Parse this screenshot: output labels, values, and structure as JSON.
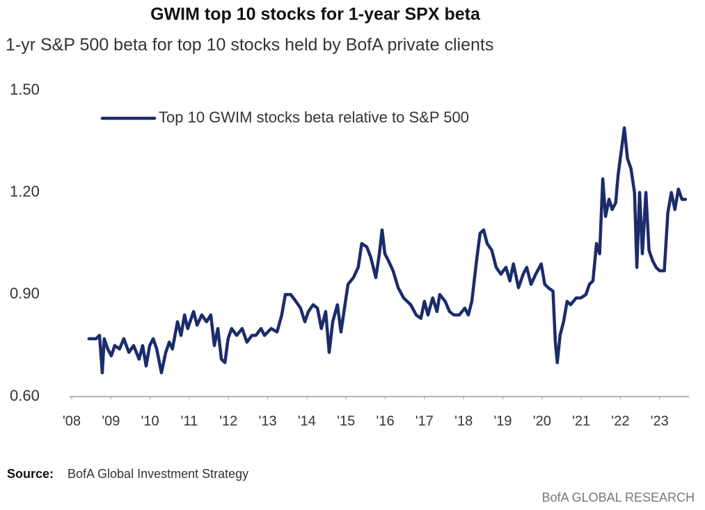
{
  "chart_data": {
    "type": "line",
    "title": "GWIM top 10 stocks for 1-year SPX beta",
    "subtitle": "1-yr S&P 500 beta for top 10 stocks held by BofA private clients",
    "source_label": "Source:",
    "source": "BofA Global Investment Strategy",
    "footer": "BofA GLOBAL RESEARCH",
    "legend": "upper left",
    "xlim": [
      2008,
      2023.75
    ],
    "xticks": [
      {
        "value": 2008,
        "label": "'08"
      },
      {
        "value": 2009,
        "label": "'09"
      },
      {
        "value": 2010,
        "label": "'10"
      },
      {
        "value": 2011,
        "label": "'11"
      },
      {
        "value": 2012,
        "label": "'12"
      },
      {
        "value": 2013,
        "label": "'13"
      },
      {
        "value": 2014,
        "label": "'14"
      },
      {
        "value": 2015,
        "label": "'15"
      },
      {
        "value": 2016,
        "label": "'16"
      },
      {
        "value": 2017,
        "label": "'17"
      },
      {
        "value": 2018,
        "label": "'18"
      },
      {
        "value": 2019,
        "label": "'19"
      },
      {
        "value": 2020,
        "label": "'20"
      },
      {
        "value": 2021,
        "label": "'21"
      },
      {
        "value": 2022,
        "label": "'22"
      },
      {
        "value": 2023,
        "label": "'23"
      }
    ],
    "ylim": [
      0.6,
      1.5
    ],
    "yticks": [
      {
        "value": 0.6,
        "label": "0.60"
      },
      {
        "value": 0.9,
        "label": "0.90"
      },
      {
        "value": 1.2,
        "label": "1.20"
      },
      {
        "value": 1.5,
        "label": "1.50"
      }
    ],
    "grid": false,
    "x": [
      2008.44,
      2008.62,
      2008.71,
      2008.78,
      2008.83,
      2008.92,
      2009.01,
      2009.1,
      2009.22,
      2009.33,
      2009.46,
      2009.58,
      2009.72,
      2009.81,
      2009.9,
      2009.99,
      2010.08,
      2010.17,
      2010.29,
      2010.4,
      2010.49,
      2010.57,
      2010.7,
      2010.79,
      2010.88,
      2010.96,
      2011.11,
      2011.2,
      2011.32,
      2011.44,
      2011.55,
      2011.64,
      2011.73,
      2011.82,
      2011.91,
      2011.99,
      2012.08,
      2012.21,
      2012.35,
      2012.47,
      2012.6,
      2012.7,
      2012.83,
      2012.92,
      2013.09,
      2013.24,
      2013.36,
      2013.45,
      2013.59,
      2013.72,
      2013.84,
      2013.95,
      2014.04,
      2014.16,
      2014.27,
      2014.37,
      2014.48,
      2014.57,
      2014.66,
      2014.78,
      2014.87,
      2014.96,
      2015.05,
      2015.19,
      2015.31,
      2015.4,
      2015.53,
      2015.63,
      2015.76,
      2015.85,
      2015.92,
      2015.99,
      2016.08,
      2016.2,
      2016.33,
      2016.47,
      2016.65,
      2016.79,
      2016.91,
      2017.0,
      2017.09,
      2017.21,
      2017.32,
      2017.39,
      2017.53,
      2017.64,
      2017.75,
      2017.89,
      2018.03,
      2018.12,
      2018.21,
      2018.33,
      2018.42,
      2018.51,
      2018.6,
      2018.72,
      2018.83,
      2018.95,
      2019.08,
      2019.18,
      2019.27,
      2019.4,
      2019.52,
      2019.61,
      2019.72,
      2019.84,
      2019.98,
      2020.07,
      2020.16,
      2020.28,
      2020.34,
      2020.39,
      2020.46,
      2020.55,
      2020.64,
      2020.73,
      2020.87,
      2020.99,
      2021.12,
      2021.21,
      2021.3,
      2021.39,
      2021.47,
      2021.55,
      2021.62,
      2021.71,
      2021.79,
      2021.88,
      2021.94,
      2022.02,
      2022.1,
      2022.18,
      2022.27,
      2022.36,
      2022.42,
      2022.49,
      2022.56,
      2022.65,
      2022.73,
      2022.82,
      2022.91,
      2023.0,
      2023.12,
      2023.21,
      2023.3,
      2023.39,
      2023.48,
      2023.57,
      2023.66
    ],
    "series": [
      {
        "name": "Top 10 GWIM stocks beta relative to S&P 500",
        "color": "#1b2c6b",
        "values": [
          0.77,
          0.77,
          0.78,
          0.67,
          0.77,
          0.74,
          0.72,
          0.75,
          0.74,
          0.77,
          0.73,
          0.75,
          0.71,
          0.75,
          0.69,
          0.75,
          0.77,
          0.74,
          0.67,
          0.73,
          0.76,
          0.74,
          0.82,
          0.78,
          0.84,
          0.8,
          0.85,
          0.81,
          0.84,
          0.82,
          0.84,
          0.75,
          0.8,
          0.71,
          0.7,
          0.77,
          0.8,
          0.78,
          0.8,
          0.76,
          0.78,
          0.78,
          0.8,
          0.78,
          0.8,
          0.79,
          0.84,
          0.9,
          0.9,
          0.88,
          0.86,
          0.82,
          0.85,
          0.87,
          0.86,
          0.8,
          0.85,
          0.73,
          0.82,
          0.87,
          0.79,
          0.86,
          0.93,
          0.95,
          0.98,
          1.05,
          1.04,
          1.01,
          0.95,
          1.02,
          1.09,
          1.02,
          1.0,
          0.97,
          0.92,
          0.89,
          0.87,
          0.84,
          0.83,
          0.88,
          0.84,
          0.89,
          0.85,
          0.9,
          0.88,
          0.85,
          0.84,
          0.84,
          0.86,
          0.84,
          0.88,
          1.0,
          1.08,
          1.09,
          1.05,
          1.03,
          0.98,
          0.96,
          0.98,
          0.94,
          0.99,
          0.92,
          0.96,
          0.98,
          0.93,
          0.96,
          0.99,
          0.93,
          0.92,
          0.91,
          0.76,
          0.7,
          0.78,
          0.82,
          0.88,
          0.87,
          0.89,
          0.89,
          0.9,
          0.93,
          0.94,
          1.05,
          1.02,
          1.24,
          1.13,
          1.18,
          1.15,
          1.17,
          1.25,
          1.32,
          1.39,
          1.3,
          1.27,
          1.2,
          0.98,
          1.2,
          1.02,
          1.2,
          1.03,
          1.0,
          0.98,
          0.97,
          0.97,
          1.14,
          1.2,
          1.15,
          1.21,
          1.18,
          1.18
        ]
      }
    ]
  }
}
